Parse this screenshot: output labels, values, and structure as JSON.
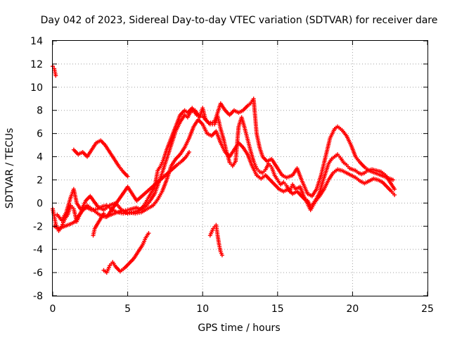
{
  "chart_data": {
    "type": "scatter",
    "title": "Day 042 of 2023, Sidereal Day-to-day VTEC variation (SDTVAR) for receiver dare",
    "xlabel": "GPS time / hours",
    "ylabel": "SDTVAR / TECUs",
    "xlim": [
      0,
      25
    ],
    "ylim": [
      -8,
      14
    ],
    "x_ticks": [
      0,
      5,
      10,
      15,
      20,
      25
    ],
    "y_ticks": [
      -8,
      -6,
      -4,
      -2,
      0,
      2,
      4,
      6,
      8,
      10,
      12,
      14
    ],
    "grid": true,
    "marker": "plus",
    "color": "#ff0000",
    "series": [
      {
        "name": "main-trace",
        "points": [
          [
            0.0,
            -0.5
          ],
          [
            0.2,
            -1.8
          ],
          [
            0.4,
            -2.4
          ],
          [
            0.6,
            -2.0
          ],
          [
            0.8,
            -1.4
          ],
          [
            1.0,
            -1.0
          ],
          [
            1.2,
            -0.2
          ],
          [
            1.4,
            -0.5
          ],
          [
            1.6,
            -1.6
          ],
          [
            1.8,
            -1.0
          ],
          [
            2.0,
            -0.5
          ],
          [
            2.3,
            -0.4
          ],
          [
            2.6,
            -0.6
          ],
          [
            3.0,
            -0.5
          ],
          [
            3.3,
            -0.3
          ],
          [
            3.6,
            -0.2
          ],
          [
            4.0,
            -0.6
          ],
          [
            4.3,
            -0.8
          ],
          [
            4.6,
            -0.7
          ],
          [
            5.0,
            -0.6
          ],
          [
            5.3,
            -0.5
          ],
          [
            5.6,
            -0.4
          ],
          [
            5.9,
            -0.6
          ],
          [
            6.2,
            -0.3
          ],
          [
            6.5,
            0.2
          ],
          [
            6.8,
            0.8
          ],
          [
            7.0,
            1.5
          ],
          [
            7.3,
            2.6
          ],
          [
            7.6,
            3.8
          ],
          [
            7.9,
            5.0
          ],
          [
            8.2,
            6.2
          ],
          [
            8.5,
            7.0
          ],
          [
            8.8,
            7.6
          ],
          [
            9.0,
            7.4
          ],
          [
            9.2,
            7.9
          ],
          [
            9.5,
            8.0
          ],
          [
            9.8,
            7.4
          ],
          [
            10.0,
            8.2
          ],
          [
            10.2,
            7.2
          ],
          [
            10.5,
            6.8
          ],
          [
            10.8,
            6.8
          ],
          [
            11.0,
            7.5
          ],
          [
            11.2,
            6.4
          ],
          [
            11.4,
            5.5
          ],
          [
            11.6,
            4.4
          ],
          [
            11.8,
            3.5
          ],
          [
            12.0,
            3.2
          ],
          [
            12.2,
            3.6
          ],
          [
            12.4,
            6.6
          ],
          [
            12.6,
            7.4
          ],
          [
            12.8,
            6.5
          ],
          [
            13.0,
            5.5
          ],
          [
            13.2,
            4.5
          ],
          [
            13.4,
            3.6
          ],
          [
            13.6,
            3.0
          ],
          [
            13.8,
            2.7
          ],
          [
            14.0,
            2.6
          ],
          [
            14.2,
            2.9
          ],
          [
            14.4,
            3.4
          ],
          [
            14.6,
            3.1
          ],
          [
            14.8,
            2.4
          ],
          [
            15.0,
            2.0
          ],
          [
            15.2,
            1.6
          ],
          [
            15.4,
            1.8
          ],
          [
            15.6,
            1.5
          ],
          [
            15.8,
            1.0
          ],
          [
            16.0,
            1.6
          ],
          [
            16.2,
            1.2
          ],
          [
            16.5,
            1.4
          ],
          [
            16.8,
            0.4
          ],
          [
            17.0,
            0.2
          ],
          [
            17.2,
            -0.3
          ],
          [
            17.4,
            0.0
          ],
          [
            17.6,
            0.4
          ],
          [
            17.8,
            0.9
          ],
          [
            18.0,
            1.8
          ],
          [
            18.2,
            2.6
          ],
          [
            18.4,
            3.4
          ],
          [
            18.6,
            3.8
          ],
          [
            18.8,
            4.0
          ],
          [
            19.0,
            4.2
          ],
          [
            19.2,
            3.9
          ],
          [
            19.4,
            3.5
          ],
          [
            19.6,
            3.3
          ],
          [
            19.8,
            3.0
          ],
          [
            20.0,
            2.9
          ],
          [
            20.2,
            2.8
          ],
          [
            20.4,
            2.6
          ],
          [
            20.6,
            2.5
          ],
          [
            20.8,
            2.6
          ],
          [
            21.0,
            2.8
          ],
          [
            21.3,
            2.9
          ],
          [
            21.6,
            2.8
          ],
          [
            21.9,
            2.7
          ],
          [
            22.2,
            2.4
          ],
          [
            22.5,
            1.8
          ],
          [
            22.8,
            1.2
          ]
        ]
      },
      {
        "name": "upper-envelope",
        "points": [
          [
            0.3,
            -1.0
          ],
          [
            0.6,
            -1.5
          ],
          [
            0.9,
            -0.8
          ],
          [
            1.2,
            0.5
          ],
          [
            1.4,
            1.2
          ],
          [
            1.6,
            0.0
          ],
          [
            1.9,
            -0.6
          ],
          [
            2.2,
            0.2
          ],
          [
            2.5,
            0.6
          ],
          [
            3.0,
            -0.3
          ],
          [
            3.4,
            -0.6
          ],
          [
            3.8,
            -0.2
          ],
          [
            4.2,
            0.0
          ],
          [
            4.6,
            -0.6
          ],
          [
            5.0,
            -0.9
          ],
          [
            5.4,
            -0.8
          ],
          [
            5.8,
            -0.6
          ],
          [
            6.1,
            -0.2
          ],
          [
            6.4,
            0.5
          ],
          [
            6.8,
            1.4
          ],
          [
            7.0,
            2.8
          ],
          [
            7.2,
            3.2
          ],
          [
            7.4,
            3.8
          ],
          [
            7.6,
            4.6
          ],
          [
            7.9,
            5.6
          ],
          [
            8.2,
            6.6
          ],
          [
            8.5,
            7.6
          ],
          [
            8.8,
            8.0
          ],
          [
            9.0,
            7.8
          ],
          [
            9.3,
            8.2
          ],
          [
            9.6,
            7.6
          ],
          [
            10.0,
            7.5
          ],
          [
            10.4,
            6.9
          ],
          [
            10.8,
            7.0
          ],
          [
            11.2,
            8.6
          ],
          [
            11.5,
            8.0
          ],
          [
            11.8,
            7.6
          ],
          [
            12.1,
            8.0
          ],
          [
            12.4,
            7.8
          ],
          [
            12.7,
            8.0
          ],
          [
            13.0,
            8.4
          ],
          [
            13.2,
            8.6
          ],
          [
            13.4,
            9.0
          ],
          [
            13.6,
            6.0
          ],
          [
            13.8,
            4.8
          ],
          [
            14.0,
            4.0
          ],
          [
            14.3,
            3.6
          ],
          [
            14.6,
            3.8
          ],
          [
            15.0,
            3.0
          ],
          [
            15.3,
            2.4
          ],
          [
            15.6,
            2.2
          ],
          [
            16.0,
            2.4
          ],
          [
            16.3,
            3.0
          ],
          [
            16.6,
            2.0
          ],
          [
            17.0,
            0.8
          ],
          [
            17.3,
            0.6
          ],
          [
            17.6,
            1.2
          ],
          [
            17.9,
            2.4
          ],
          [
            18.2,
            4.0
          ],
          [
            18.5,
            5.6
          ],
          [
            18.8,
            6.4
          ],
          [
            19.0,
            6.6
          ],
          [
            19.3,
            6.3
          ],
          [
            19.6,
            5.8
          ],
          [
            19.9,
            5.0
          ],
          [
            20.2,
            4.0
          ],
          [
            20.5,
            3.5
          ],
          [
            20.8,
            3.1
          ],
          [
            21.1,
            2.8
          ],
          [
            21.5,
            2.6
          ],
          [
            21.9,
            2.4
          ],
          [
            22.3,
            2.2
          ],
          [
            22.7,
            2.0
          ]
        ]
      },
      {
        "name": "lower-envelope",
        "points": [
          [
            0.1,
            -2.0
          ],
          [
            0.4,
            -2.2
          ],
          [
            0.8,
            -2.0
          ],
          [
            1.2,
            -1.8
          ],
          [
            1.5,
            -1.6
          ],
          [
            1.9,
            -0.8
          ],
          [
            2.3,
            -0.2
          ],
          [
            2.7,
            -0.6
          ],
          [
            3.1,
            -1.0
          ],
          [
            3.5,
            -1.2
          ],
          [
            3.9,
            -1.0
          ],
          [
            4.3,
            -0.8
          ],
          [
            4.7,
            -0.9
          ],
          [
            5.1,
            -0.8
          ],
          [
            5.5,
            -0.9
          ],
          [
            5.9,
            -0.8
          ],
          [
            6.3,
            -0.5
          ],
          [
            6.7,
            -0.2
          ],
          [
            7.0,
            0.3
          ],
          [
            7.3,
            1.0
          ],
          [
            7.6,
            2.0
          ],
          [
            7.9,
            3.2
          ],
          [
            8.2,
            3.8
          ],
          [
            8.5,
            4.2
          ],
          [
            8.8,
            4.8
          ],
          [
            9.1,
            5.6
          ],
          [
            9.4,
            6.6
          ],
          [
            9.7,
            7.2
          ],
          [
            10.0,
            6.8
          ],
          [
            10.3,
            6.0
          ],
          [
            10.6,
            5.8
          ],
          [
            10.9,
            6.2
          ],
          [
            11.2,
            5.2
          ],
          [
            11.5,
            4.4
          ],
          [
            11.8,
            4.0
          ],
          [
            12.1,
            4.6
          ],
          [
            12.4,
            5.2
          ],
          [
            12.7,
            4.8
          ],
          [
            13.0,
            4.2
          ],
          [
            13.3,
            3.2
          ],
          [
            13.6,
            2.4
          ],
          [
            13.9,
            2.1
          ],
          [
            14.2,
            2.4
          ],
          [
            14.5,
            2.0
          ],
          [
            14.8,
            1.6
          ],
          [
            15.1,
            1.2
          ],
          [
            15.4,
            1.0
          ],
          [
            15.7,
            1.2
          ],
          [
            16.0,
            0.8
          ],
          [
            16.3,
            1.0
          ],
          [
            16.6,
            0.6
          ],
          [
            16.9,
            0.2
          ],
          [
            17.2,
            -0.6
          ],
          [
            17.5,
            0.1
          ],
          [
            17.8,
            0.6
          ],
          [
            18.1,
            1.2
          ],
          [
            18.4,
            2.0
          ],
          [
            18.7,
            2.6
          ],
          [
            19.0,
            2.9
          ],
          [
            19.3,
            2.8
          ],
          [
            19.6,
            2.6
          ],
          [
            19.9,
            2.4
          ],
          [
            20.2,
            2.2
          ],
          [
            20.5,
            1.9
          ],
          [
            20.8,
            1.7
          ],
          [
            21.1,
            1.9
          ],
          [
            21.4,
            2.1
          ],
          [
            21.7,
            2.0
          ],
          [
            22.0,
            1.8
          ],
          [
            22.3,
            1.4
          ],
          [
            22.6,
            1.0
          ],
          [
            22.8,
            0.7
          ]
        ]
      },
      {
        "name": "arc-upper",
        "points": [
          [
            1.4,
            4.6
          ],
          [
            1.7,
            4.2
          ],
          [
            2.0,
            4.4
          ],
          [
            2.3,
            4.0
          ],
          [
            2.6,
            4.6
          ],
          [
            2.9,
            5.2
          ],
          [
            3.2,
            5.4
          ],
          [
            3.5,
            5.0
          ],
          [
            3.8,
            4.4
          ],
          [
            4.1,
            3.8
          ],
          [
            4.4,
            3.2
          ],
          [
            4.7,
            2.7
          ],
          [
            5.0,
            2.3
          ]
        ]
      },
      {
        "name": "arc-lower",
        "points": [
          [
            3.4,
            -5.8
          ],
          [
            3.6,
            -6.0
          ],
          [
            3.8,
            -5.4
          ],
          [
            4.0,
            -5.1
          ],
          [
            4.2,
            -5.5
          ],
          [
            4.5,
            -5.9
          ],
          [
            4.8,
            -5.6
          ],
          [
            5.1,
            -5.2
          ],
          [
            5.4,
            -4.8
          ],
          [
            5.7,
            -4.2
          ],
          [
            6.0,
            -3.6
          ],
          [
            6.2,
            -3.0
          ],
          [
            6.4,
            -2.6
          ]
        ]
      },
      {
        "name": "start-cluster",
        "points": [
          [
            0.0,
            11.8
          ],
          [
            0.1,
            11.6
          ],
          [
            0.15,
            11.3
          ],
          [
            0.2,
            11.0
          ]
        ]
      },
      {
        "name": "small-cluster",
        "points": [
          [
            10.5,
            -2.8
          ],
          [
            10.7,
            -2.2
          ],
          [
            10.9,
            -1.9
          ],
          [
            11.0,
            -2.8
          ],
          [
            11.1,
            -3.6
          ],
          [
            11.2,
            -4.2
          ],
          [
            11.3,
            -4.5
          ]
        ]
      },
      {
        "name": "short-segments",
        "points": [
          [
            2.7,
            -2.8
          ],
          [
            2.8,
            -2.2
          ],
          [
            3.4,
            -0.9
          ],
          [
            3.6,
            -1.2
          ],
          [
            5.0,
            1.4
          ],
          [
            5.3,
            0.8
          ],
          [
            5.6,
            0.2
          ],
          [
            8.3,
            3.3
          ],
          [
            8.6,
            3.6
          ],
          [
            8.9,
            4.0
          ],
          [
            9.1,
            4.4
          ]
        ]
      }
    ]
  }
}
